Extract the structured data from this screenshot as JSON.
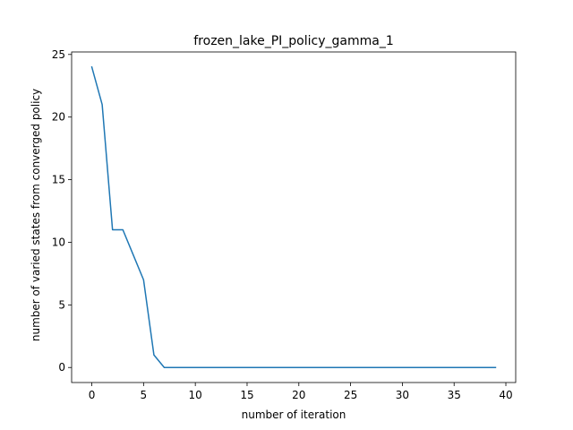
{
  "chart_data": {
    "type": "line",
    "title": "frozen_lake_PI_policy_gamma_1",
    "xlabel": "number of iteration",
    "ylabel": "number of varied states from converged policy",
    "xlim": [
      -1.95,
      40.95
    ],
    "ylim": [
      -1.2,
      25.2
    ],
    "xticks": [
      0,
      5,
      10,
      15,
      20,
      25,
      30,
      35,
      40
    ],
    "yticks": [
      0,
      5,
      10,
      15,
      20,
      25
    ],
    "xtick_labels": [
      "0",
      "5",
      "10",
      "15",
      "20",
      "25",
      "30",
      "35",
      "40"
    ],
    "ytick_labels": [
      "0",
      "5",
      "10",
      "15",
      "20",
      "25"
    ],
    "grid": false,
    "series": [
      {
        "color": "#1f77b4",
        "x": [
          0,
          1,
          2,
          3,
          4,
          5,
          6,
          7,
          8,
          9,
          10,
          11,
          12,
          13,
          14,
          15,
          16,
          17,
          18,
          19,
          20,
          21,
          22,
          23,
          24,
          25,
          26,
          27,
          28,
          29,
          30,
          31,
          32,
          33,
          34,
          35,
          36,
          37,
          38,
          39
        ],
        "y": [
          24,
          21,
          11,
          11,
          9,
          7,
          1,
          0,
          0,
          0,
          0,
          0,
          0,
          0,
          0,
          0,
          0,
          0,
          0,
          0,
          0,
          0,
          0,
          0,
          0,
          0,
          0,
          0,
          0,
          0,
          0,
          0,
          0,
          0,
          0,
          0,
          0,
          0,
          0,
          0
        ]
      }
    ]
  }
}
